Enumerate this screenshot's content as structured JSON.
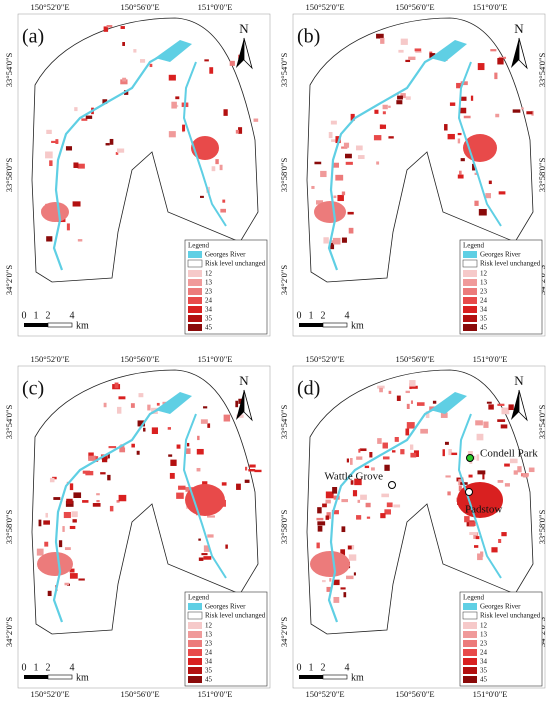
{
  "lon_labels": [
    "150°52'0\"E",
    "150°56'0\"E",
    "151°0'0\"E"
  ],
  "lat_labels": [
    "33°54'0\"S",
    "33°58'0\"S",
    "34°2'0\"S"
  ],
  "north": "N",
  "scale": {
    "ticks": [
      "0",
      "1",
      "2",
      "4"
    ],
    "unit": "km"
  },
  "legend": {
    "title": "Legend",
    "river": "Georges River",
    "unchanged": "Risk level unchanged",
    "classes": [
      "12",
      "13",
      "23",
      "24",
      "34",
      "35",
      "45"
    ]
  },
  "panels": [
    {
      "label": "(a)"
    },
    {
      "label": "(b)"
    },
    {
      "label": "(c)"
    },
    {
      "label": "(d)",
      "places": [
        "Condell Park",
        "Wattle Grove",
        "Padstow"
      ]
    }
  ]
}
